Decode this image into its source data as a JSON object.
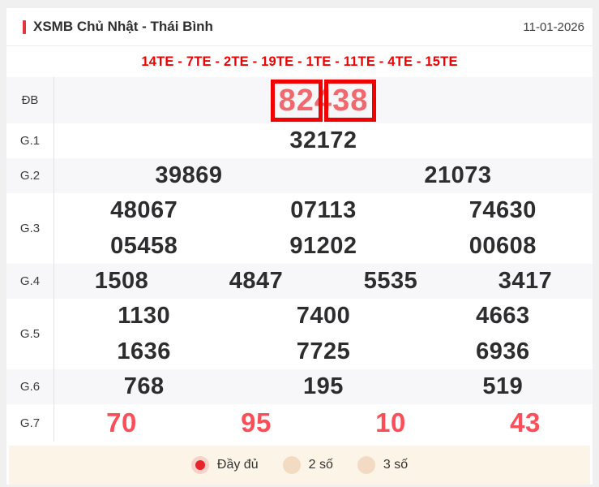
{
  "header": {
    "title": "XSMB Chủ Nhật - Thái Bình",
    "date": "11-01-2026"
  },
  "te_line": "14TE - 7TE - 2TE - 19TE - 1TE - 11TE - 4TE - 15TE",
  "results": {
    "db": {
      "label": "ĐB",
      "full_number": "82438",
      "parts": [
        "82",
        "4",
        "38"
      ]
    },
    "rows": [
      {
        "label": "G.1",
        "lines": [
          [
            "32172"
          ]
        ]
      },
      {
        "label": "G.2",
        "lines": [
          [
            "39869",
            "21073"
          ]
        ]
      },
      {
        "label": "G.3",
        "lines": [
          [
            "48067",
            "07113",
            "74630"
          ],
          [
            "05458",
            "91202",
            "00608"
          ]
        ]
      },
      {
        "label": "G.4",
        "lines": [
          [
            "1508",
            "4847",
            "5535",
            "3417"
          ]
        ]
      },
      {
        "label": "G.5",
        "lines": [
          [
            "1130",
            "7400",
            "4663"
          ],
          [
            "1636",
            "7725",
            "6936"
          ]
        ]
      },
      {
        "label": "G.6",
        "lines": [
          [
            "768",
            "195",
            "519"
          ]
        ]
      },
      {
        "label": "G.7",
        "lines": [
          [
            "70",
            "95",
            "10",
            "43"
          ]
        ],
        "highlight": true
      }
    ]
  },
  "footer": {
    "options": [
      {
        "label": "Đầy đủ",
        "selected": true
      },
      {
        "label": "2 số",
        "selected": false
      },
      {
        "label": "3 số",
        "selected": false
      }
    ]
  },
  "colors": {
    "accent_red": "#f20000",
    "te_text": "#f30000",
    "db_digit": "#f0696e",
    "g7_digit": "#fb4e58",
    "number_dark": "#2d2d30",
    "footer_bg": "#fcf5e7",
    "radio_dot": "#e7232b"
  }
}
